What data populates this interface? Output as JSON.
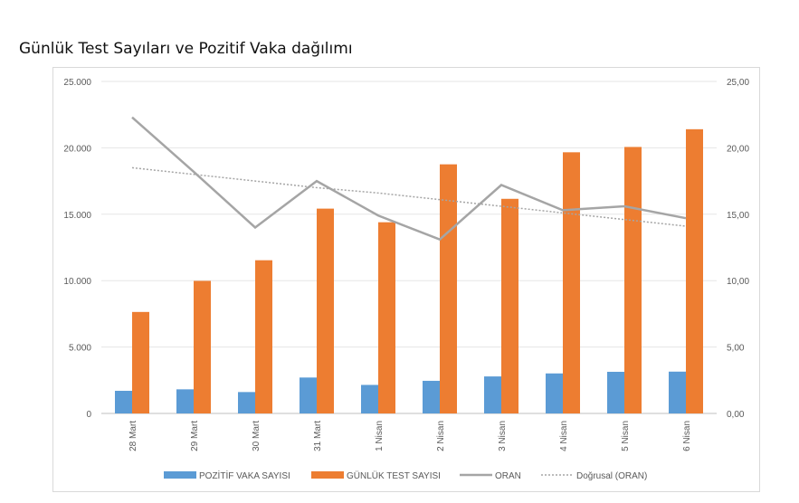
{
  "title": "Günlük Test Sayıları ve Pozitif Vaka dağılımı",
  "chart_data": {
    "type": "bar",
    "categories": [
      "28 Mart",
      "29 Mart",
      "30 Mart",
      "31 Mart",
      "1 Nisan",
      "2 Nisan",
      "3 Nisan",
      "4 Nisan",
      "5 Nisan",
      "6 Nisan"
    ],
    "series": [
      {
        "name": "POZİTİF VAKA SAYISI",
        "type": "bar",
        "axis": "left",
        "color": "#5b9bd5",
        "values": [
          1704,
          1815,
          1610,
          2704,
          2148,
          2456,
          2786,
          3013,
          3135,
          3148
        ]
      },
      {
        "name": "GÜNLÜK TEST SAYISI",
        "type": "bar",
        "axis": "left",
        "color": "#ed7d31",
        "values": [
          7641,
          9982,
          11535,
          15422,
          14396,
          18757,
          16160,
          19664,
          20065,
          21400
        ]
      },
      {
        "name": "ORAN",
        "type": "line",
        "axis": "right",
        "color": "#a5a5a5",
        "values": [
          22.3,
          18.2,
          14.0,
          17.5,
          14.9,
          13.1,
          17.2,
          15.3,
          15.6,
          14.7
        ]
      },
      {
        "name": "Doğrusal (ORAN)",
        "type": "trendline",
        "axis": "right",
        "color": "#a5a5a5",
        "values": [
          18.5,
          18.0,
          17.5,
          17.0,
          16.6,
          16.1,
          15.6,
          15.1,
          14.6,
          14.1
        ]
      }
    ],
    "y_left": {
      "ylim": [
        0,
        25000
      ],
      "ticks": [
        "0",
        "5.000",
        "10.000",
        "15.000",
        "20.000",
        "25.000"
      ]
    },
    "y_right": {
      "ylim": [
        0,
        25
      ],
      "ticks": [
        "0,00",
        "5,00",
        "10,00",
        "15,00",
        "20,00",
        "25,00"
      ]
    },
    "grid": true,
    "legend_position": "bottom"
  }
}
